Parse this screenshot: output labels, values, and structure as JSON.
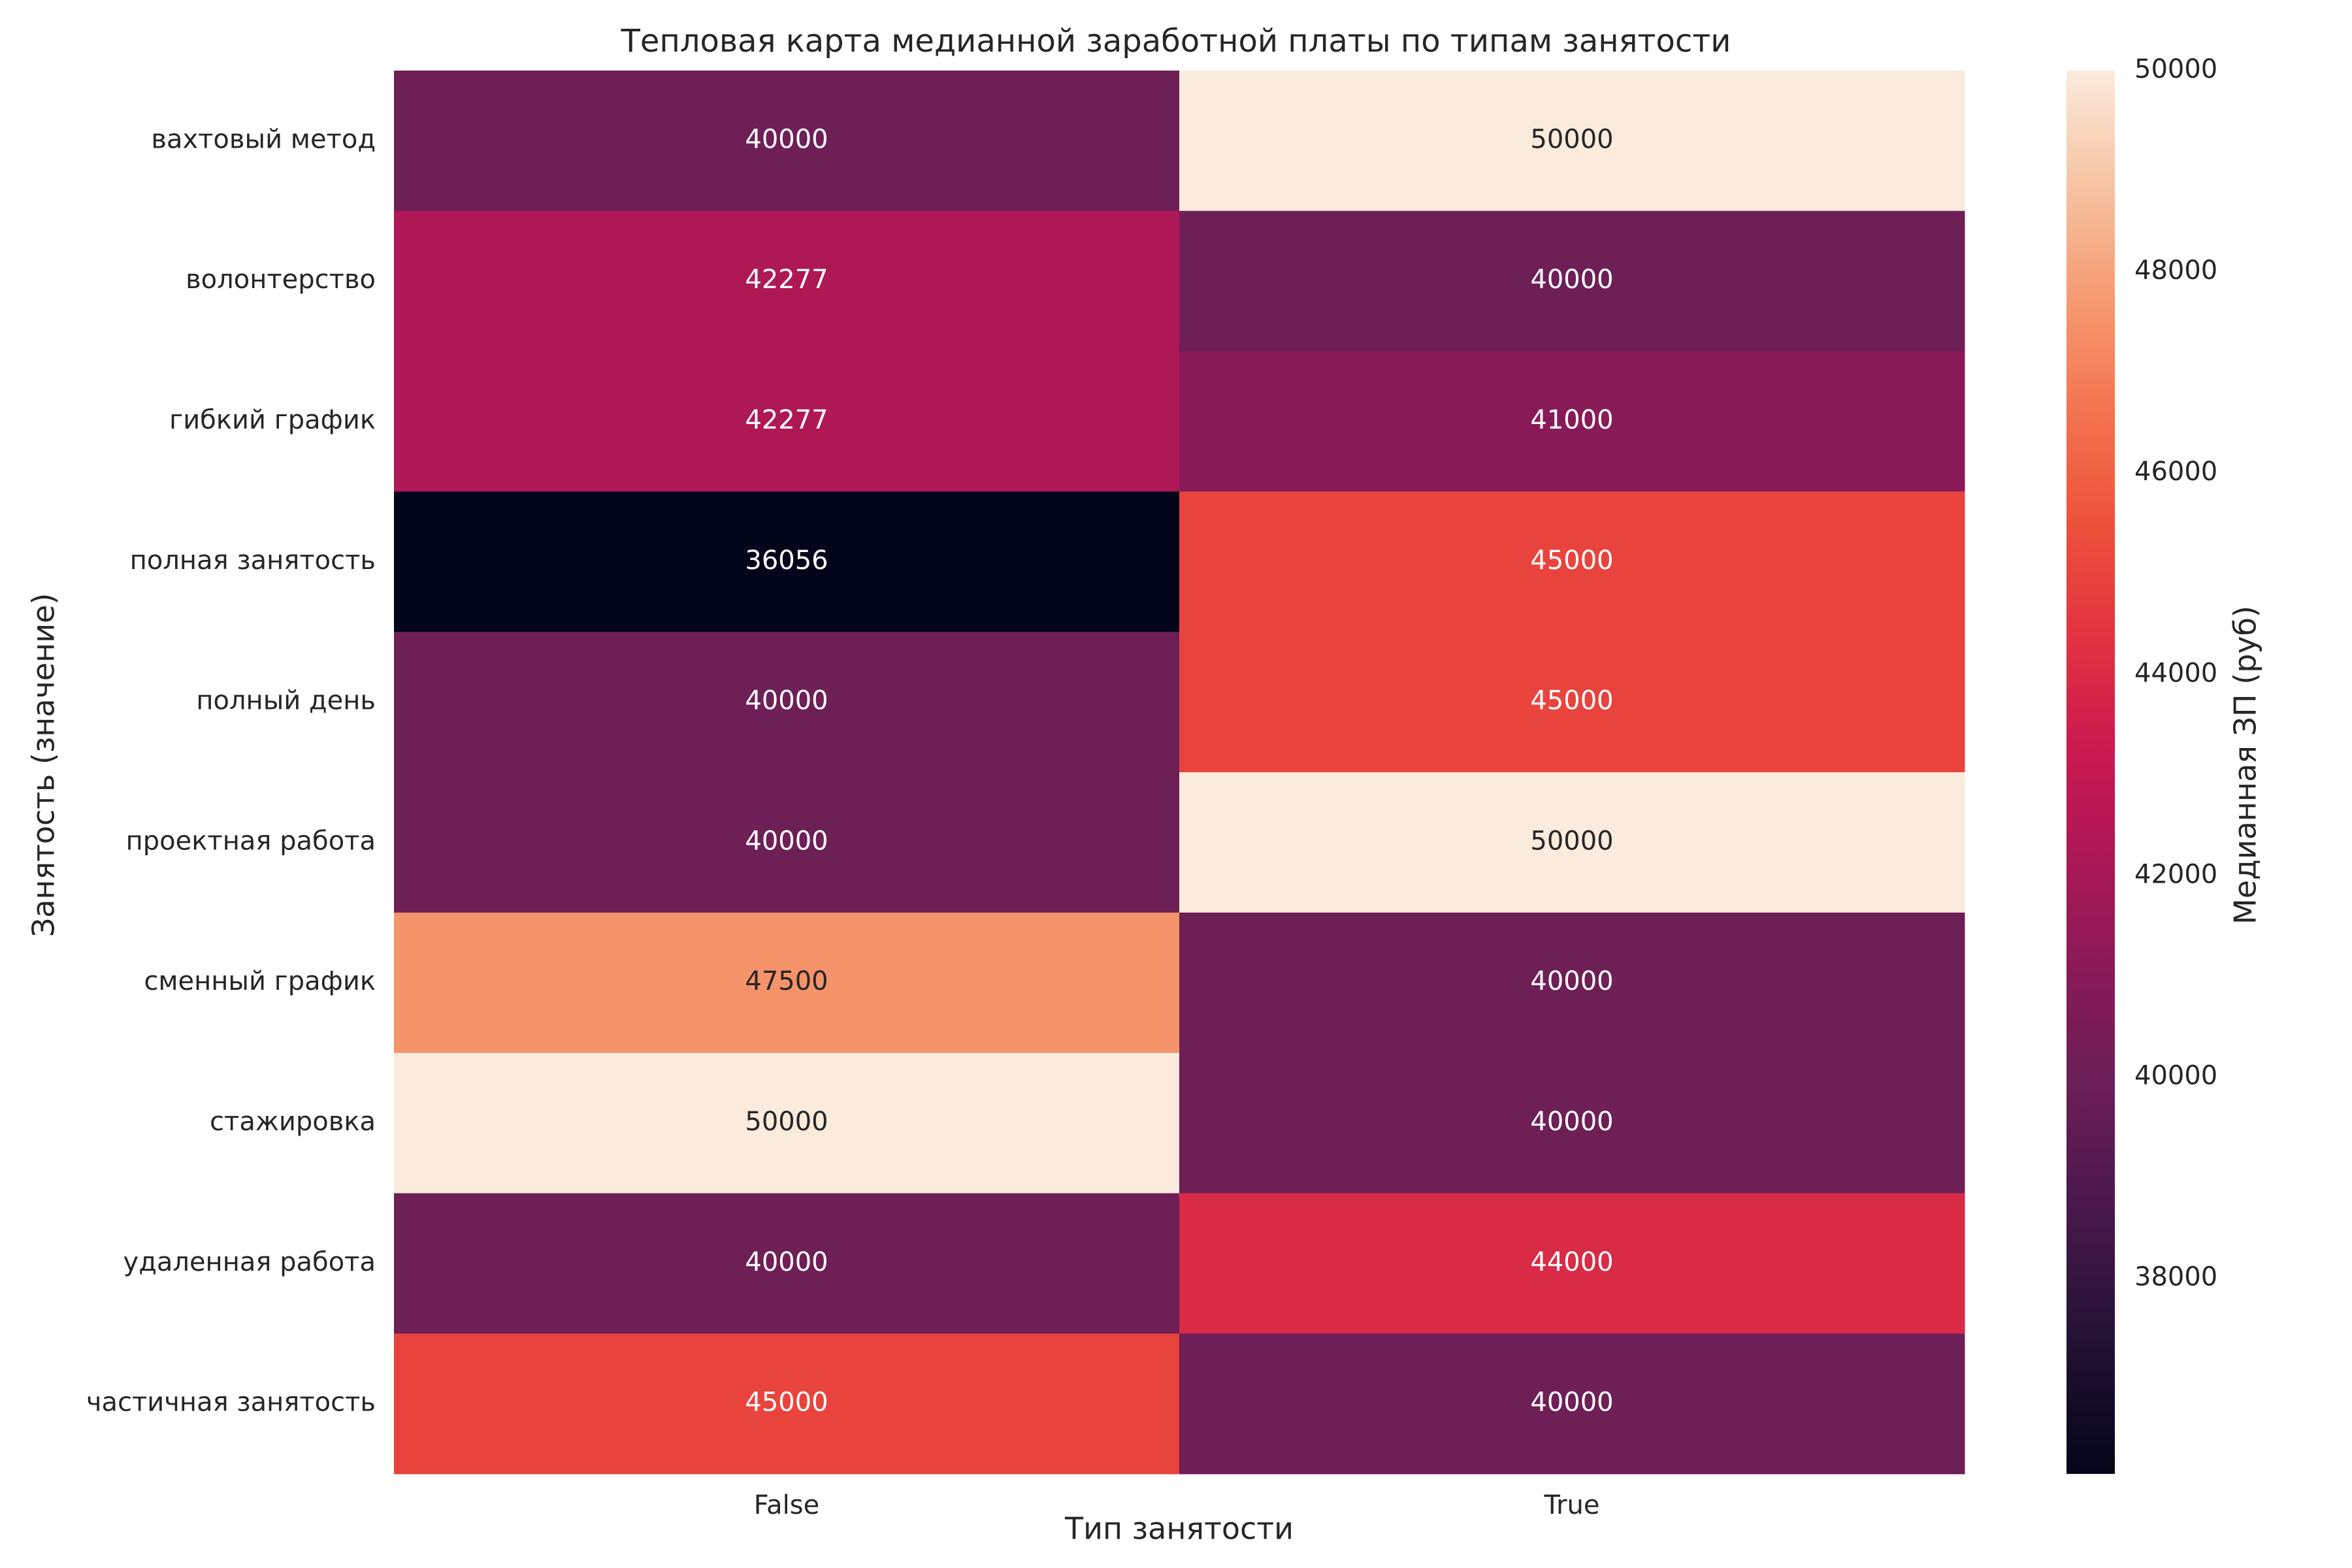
{
  "chart_data": {
    "type": "heatmap",
    "title": "Тепловая карта медианной заработной платы по типам занятости",
    "xlabel": "Тип занятости",
    "ylabel": "Занятость (значение)",
    "x_categories": [
      "False",
      "True"
    ],
    "y_categories": [
      "вахтовый метод",
      "волонтерство",
      "гибкий график",
      "полная занятость",
      "полный день",
      "проектная работа",
      "сменный график",
      "стажировка",
      "удаленная работа",
      "частичная занятость"
    ],
    "values": [
      [
        40000,
        50000
      ],
      [
        42277,
        40000
      ],
      [
        42277,
        41000
      ],
      [
        36056,
        45000
      ],
      [
        40000,
        45000
      ],
      [
        40000,
        50000
      ],
      [
        47500,
        40000
      ],
      [
        50000,
        40000
      ],
      [
        40000,
        44000
      ],
      [
        45000,
        40000
      ]
    ],
    "colorbar": {
      "label": "Медианная ЗП (руб)",
      "min": 36056,
      "max": 50000,
      "ticks": [
        38000,
        40000,
        42000,
        44000,
        46000,
        48000,
        50000
      ],
      "colormap": "rocket"
    }
  }
}
